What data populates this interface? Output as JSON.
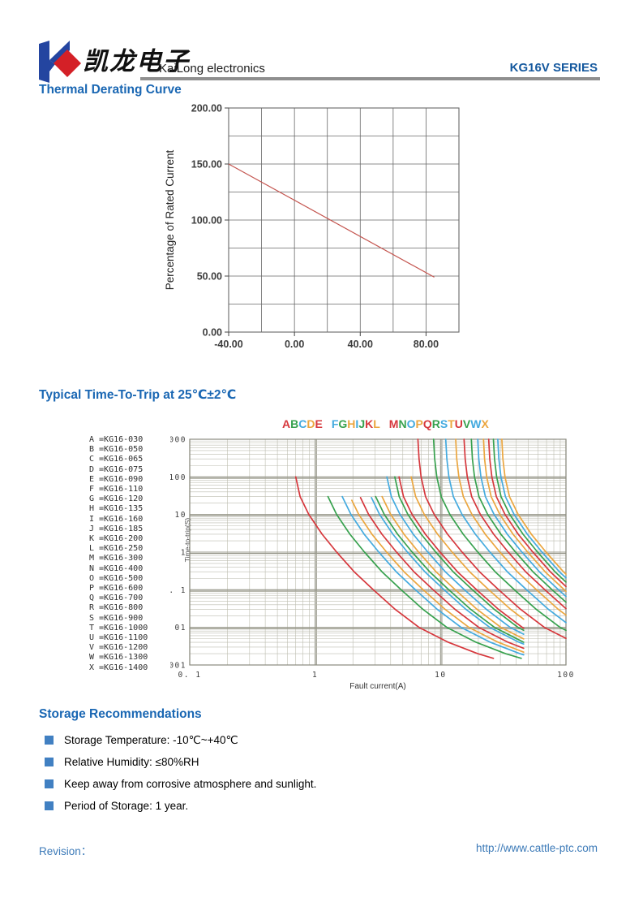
{
  "header": {
    "logo_cn": "凯龙电子",
    "logo_en": "KaiLong electronics",
    "series": "KG16V SERIES",
    "brand_blue": "#2445a0",
    "brand_red": "#d42027"
  },
  "sections": {
    "derating_title": "Thermal Derating Curve",
    "trip_title": "Typical Time-To-Trip at 25℃±2℃",
    "storage_title": "Storage Recommendations"
  },
  "storage_items": [
    "Storage Temperature: -10℃~+40℃",
    "Relative Humidity: ≤80%RH",
    "Keep away from corrosive atmosphere and sunlight.",
    "Period of Storage: 1 year."
  ],
  "footer": {
    "revision_label": "Revision：",
    "url": "http://www.cattle-ptc.com"
  },
  "palette": {
    "red": "#d6373c",
    "green": "#37a14e",
    "blue": "#43aadf",
    "orange": "#eba63f",
    "heading_blue": "#1a67b3",
    "grid_dark": "#686868",
    "grid_major": "#97978a",
    "grid_minor": "#bdbdb0",
    "derating_line": "#c4554f"
  },
  "chart_data": [
    {
      "type": "line",
      "title": "Thermal Derating Curve",
      "xlabel": "",
      "ylabel": "Percentage of Rated Current",
      "xlim": [
        -40,
        100
      ],
      "ylim": [
        0,
        200
      ],
      "x_grid_step": 20,
      "y_grid_step": 25,
      "grid": true,
      "x_ticks": [
        {
          "v": -40,
          "label": "-40.00"
        },
        {
          "v": 0,
          "label": "0.00"
        },
        {
          "v": 40,
          "label": "40.00"
        },
        {
          "v": 80,
          "label": "80.00"
        }
      ],
      "y_ticks": [
        {
          "v": 0,
          "label": "0.00"
        },
        {
          "v": 50,
          "label": "50.00"
        },
        {
          "v": 100,
          "label": "100.00"
        },
        {
          "v": 150,
          "label": "150.00"
        },
        {
          "v": 200,
          "label": "200.00"
        }
      ],
      "series": [
        {
          "name": "derating",
          "color_key": "derating_line",
          "points": [
            [
              -40,
              150
            ],
            [
              85,
              49
            ]
          ]
        }
      ]
    },
    {
      "type": "line-loglog",
      "title": "Typical Time-To-Trip at 25℃±2℃",
      "xlabel": "Fault current(A)",
      "ylabel": "Time-to-trip(S)",
      "xlim": [
        0.1,
        100
      ],
      "ylim": [
        0.001,
        1000
      ],
      "grid": true,
      "x_ticks": [
        {
          "v": 0.1,
          "label": "0. 1"
        },
        {
          "v": 1,
          "label": "1"
        },
        {
          "v": 10,
          "label": "10"
        },
        {
          "v": 100,
          "label": "100"
        }
      ],
      "y_ticks": [
        {
          "v": 1000,
          "label": "1000"
        },
        {
          "v": 100,
          "label": "100"
        },
        {
          "v": 10,
          "label": "10"
        },
        {
          "v": 1,
          "label": "1"
        },
        {
          "v": 0.1,
          "label": "0. 1"
        },
        {
          "v": 0.01,
          "label": "0. 01"
        },
        {
          "v": 0.001,
          "label": "0. 001"
        }
      ],
      "shape_template": [
        [
          1000,
          1.0
        ],
        [
          300,
          1.02
        ],
        [
          100,
          1.06
        ],
        [
          30,
          1.15
        ],
        [
          10,
          1.35
        ],
        [
          3,
          1.72
        ],
        [
          1,
          2.25
        ],
        [
          0.3,
          3.1
        ],
        [
          0.1,
          4.4
        ],
        [
          0.03,
          6.6
        ],
        [
          0.01,
          10.2
        ],
        [
          0.004,
          17.5
        ],
        [
          0.002,
          30
        ],
        [
          0.0015,
          40
        ]
      ],
      "series": [
        {
          "letter": "A",
          "part": "KG16-030",
          "color": "red",
          "trip_a": 0.66,
          "t_top": 100,
          "group": 1
        },
        {
          "letter": "B",
          "part": "KG16-050",
          "color": "green",
          "trip_a": 1.1,
          "t_top": 30,
          "group": 1
        },
        {
          "letter": "C",
          "part": "KG16-065",
          "color": "blue",
          "trip_a": 1.43,
          "t_top": 30,
          "group": 1
        },
        {
          "letter": "D",
          "part": "KG16-075",
          "color": "orange",
          "trip_a": 1.65,
          "t_top": 24,
          "group": 1
        },
        {
          "letter": "E",
          "part": "KG16-090",
          "color": "red",
          "trip_a": 1.98,
          "t_top": 28,
          "group": 1
        },
        {
          "letter": "F",
          "part": "KG16-110",
          "color": "blue",
          "trip_a": 2.42,
          "t_top": 28,
          "group": 2
        },
        {
          "letter": "G",
          "part": "KG16-120",
          "color": "green",
          "trip_a": 2.64,
          "t_top": 30,
          "group": 2
        },
        {
          "letter": "H",
          "part": "KG16-135",
          "color": "orange",
          "trip_a": 2.97,
          "t_top": 30,
          "group": 2
        },
        {
          "letter": "I",
          "part": "KG16-160",
          "color": "blue",
          "trip_a": 3.52,
          "t_top": 100,
          "group": 2
        },
        {
          "letter": "J",
          "part": "KG16-185",
          "color": "green",
          "trip_a": 4.07,
          "t_top": 100,
          "group": 2
        },
        {
          "letter": "K",
          "part": "KG16-200",
          "color": "red",
          "trip_a": 4.4,
          "t_top": 100,
          "group": 2
        },
        {
          "letter": "L",
          "part": "KG16-250",
          "color": "orange",
          "trip_a": 5.5,
          "t_top": 100,
          "group": 2
        },
        {
          "letter": "M",
          "part": "KG16-300",
          "color": "red",
          "trip_a": 6.6,
          "t_top": 1000,
          "group": 3
        },
        {
          "letter": "N",
          "part": "KG16-400",
          "color": "green",
          "trip_a": 8.8,
          "t_top": 1000,
          "group": 3
        },
        {
          "letter": "O",
          "part": "KG16-500",
          "color": "blue",
          "trip_a": 11.0,
          "t_top": 1000,
          "group": 3
        },
        {
          "letter": "P",
          "part": "KG16-600",
          "color": "orange",
          "trip_a": 13.2,
          "t_top": 1000,
          "group": 3
        },
        {
          "letter": "Q",
          "part": "KG16-700",
          "color": "red",
          "trip_a": 15.4,
          "t_top": 1000,
          "group": 3
        },
        {
          "letter": "R",
          "part": "KG16-800",
          "color": "green",
          "trip_a": 17.6,
          "t_top": 1000,
          "group": 3
        },
        {
          "letter": "S",
          "part": "KG16-900",
          "color": "blue",
          "trip_a": 19.8,
          "t_top": 1000,
          "group": 3
        },
        {
          "letter": "T",
          "part": "KG16-1000",
          "color": "orange",
          "trip_a": 22.0,
          "t_top": 1000,
          "group": 3
        },
        {
          "letter": "U",
          "part": "KG16-1100",
          "color": "red",
          "trip_a": 24.2,
          "t_top": 1000,
          "group": 3
        },
        {
          "letter": "V",
          "part": "KG16-1200",
          "color": "green",
          "trip_a": 26.4,
          "t_top": 1000,
          "group": 3
        },
        {
          "letter": "W",
          "part": "KG16-1300",
          "color": "blue",
          "trip_a": 28.6,
          "t_top": 1000,
          "group": 3
        },
        {
          "letter": "X",
          "part": "KG16-1400",
          "color": "orange",
          "trip_a": 30.8,
          "t_top": 1000,
          "group": 3
        }
      ]
    }
  ]
}
